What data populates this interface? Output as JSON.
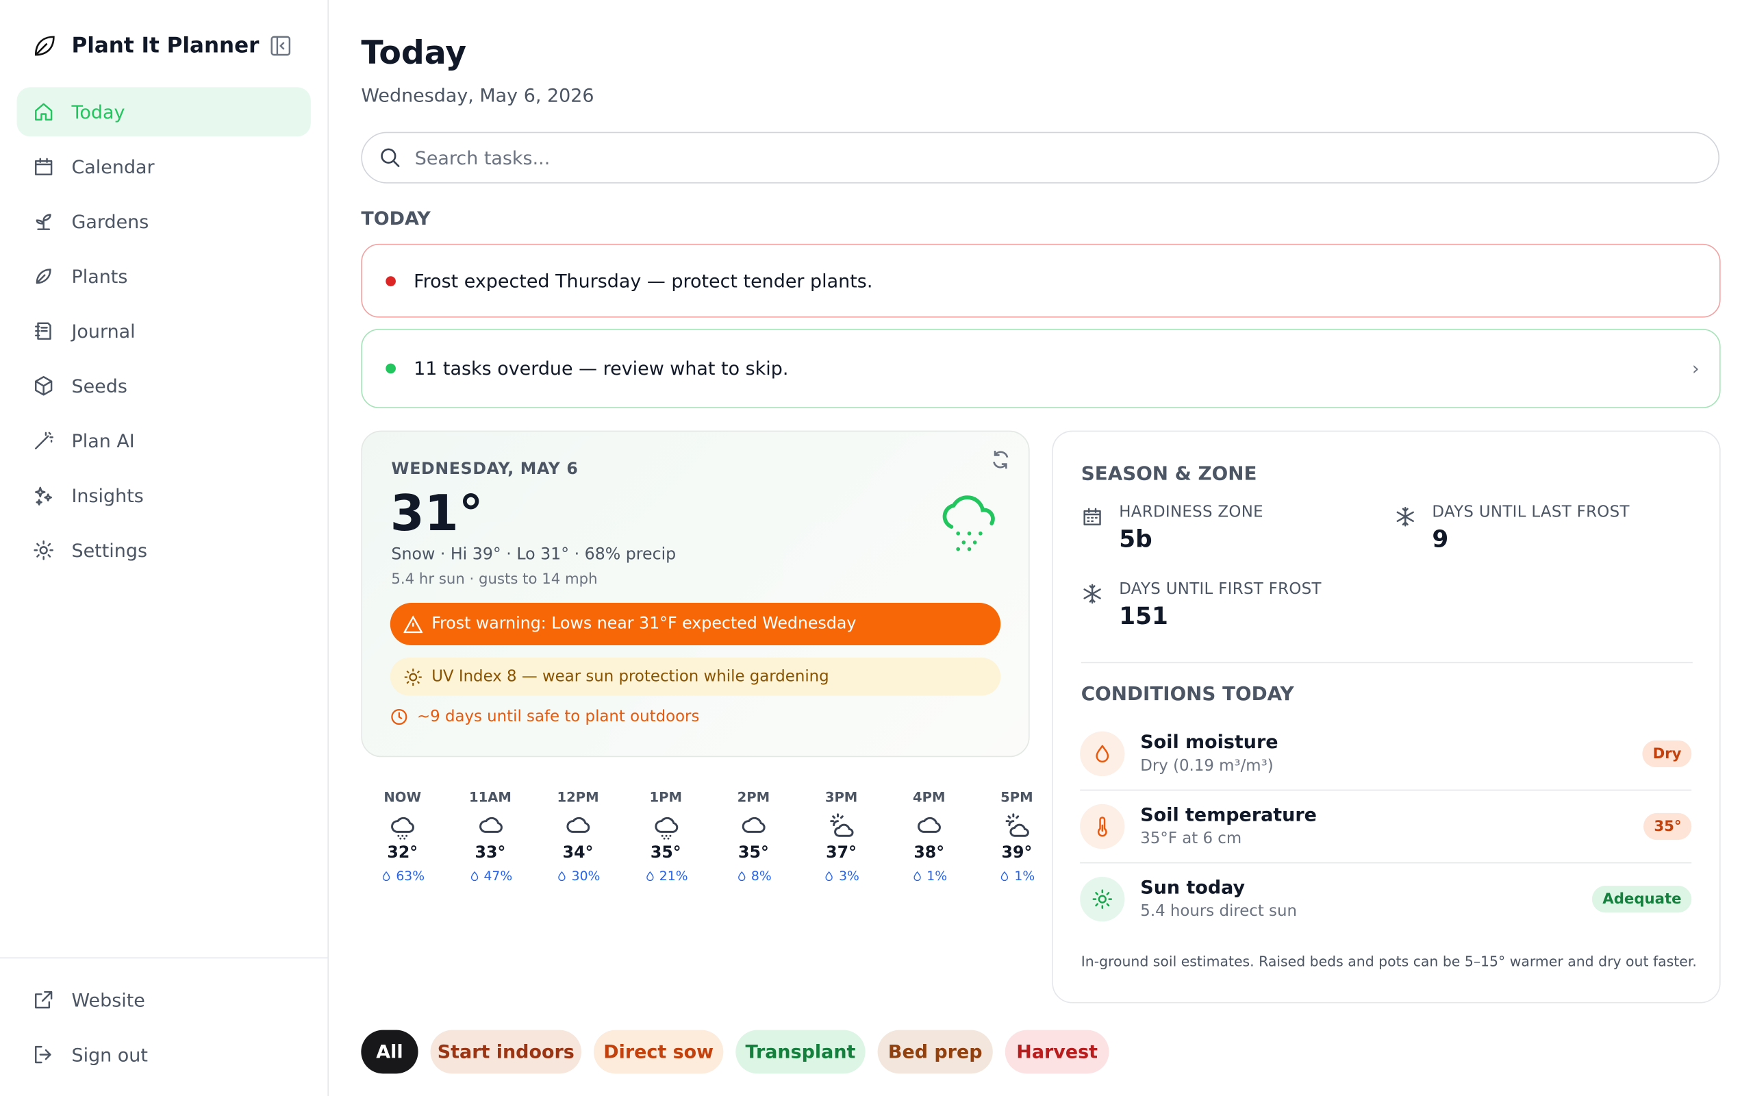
{
  "sidebar": {
    "app_name": "Plant It Planner",
    "nav": [
      "Today",
      "Calendar",
      "Gardens",
      "Plants",
      "Journal",
      "Seeds",
      "Plan AI",
      "Insights",
      "Settings"
    ],
    "footer": [
      "Website",
      "Sign out"
    ]
  },
  "header": {
    "title": "Today",
    "date": "Wednesday, May 6, 2026"
  },
  "search": {
    "placeholder": "Search tasks..."
  },
  "section_label": "TODAY",
  "alerts": [
    {
      "text": "Frost expected Thursday — protect tender plants."
    },
    {
      "text": "11 tasks overdue — review what to skip."
    }
  ],
  "weather": {
    "date": "WEDNESDAY, MAY 6",
    "temp": "31°",
    "summary": "Snow · Hi 39° · Lo 31° · 68% precip",
    "detail": "5.4 hr sun · gusts to 14 mph",
    "frost_warning": "Frost warning: Lows near 31°F expected Wednesday",
    "uv": "UV Index 8 — wear sun protection while gardening",
    "plant_safe": "~9 days until safe to plant outdoors"
  },
  "hourly": [
    {
      "time": "NOW",
      "temp": "32°",
      "precip": "63%"
    },
    {
      "time": "11AM",
      "temp": "33°",
      "precip": "47%"
    },
    {
      "time": "12PM",
      "temp": "34°",
      "precip": "30%"
    },
    {
      "time": "1PM",
      "temp": "35°",
      "precip": "21%"
    },
    {
      "time": "2PM",
      "temp": "35°",
      "precip": "8%"
    },
    {
      "time": "3PM",
      "temp": "37°",
      "precip": "3%"
    },
    {
      "time": "4PM",
      "temp": "38°",
      "precip": "1%"
    },
    {
      "time": "5PM",
      "temp": "39°",
      "precip": "1%"
    }
  ],
  "season": {
    "title": "SEASON & ZONE",
    "stats": [
      {
        "label": "HARDINESS ZONE",
        "value": "5b"
      },
      {
        "label": "DAYS UNTIL LAST FROST",
        "value": 9
      },
      {
        "label": "DAYS UNTIL FIRST FROST",
        "value": 151
      }
    ]
  },
  "conditions": {
    "title": "CONDITIONS TODAY",
    "items": [
      {
        "name": "Soil moisture",
        "detail": "Dry (0.19 m³/m³)",
        "badge": "Dry"
      },
      {
        "name": "Soil temperature",
        "detail": "35°F at 6 cm",
        "badge": "35°"
      },
      {
        "name": "Sun today",
        "detail": "5.4 hours direct sun",
        "badge": "Adequate"
      }
    ],
    "note": "In-ground soil estimates. Raised beds and pots can be 5–15° warmer and dry out faster."
  },
  "filters": [
    "All",
    "Start indoors",
    "Direct sow",
    "Transplant",
    "Bed prep",
    "Harvest"
  ]
}
